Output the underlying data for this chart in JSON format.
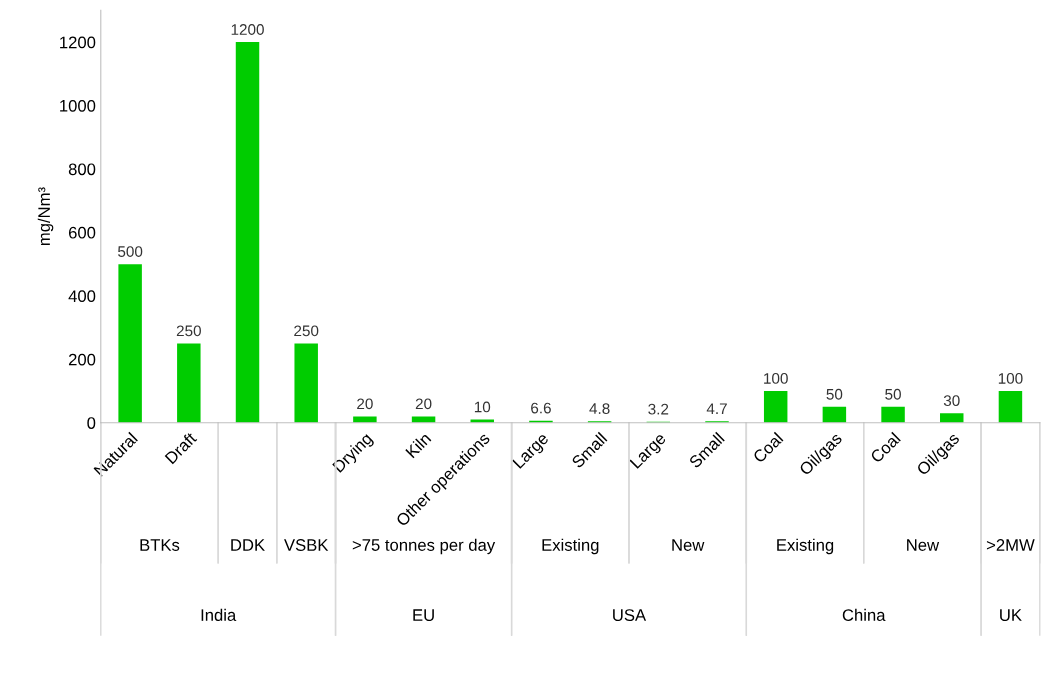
{
  "chart_data": {
    "type": "bar",
    "ylabel": "mg/Nm³",
    "categories": [
      "Natural",
      "Draft",
      null,
      null,
      "Drying",
      "Kiln",
      "Other operations",
      "Large",
      "Small",
      "Large",
      "Small",
      "Coal",
      "Oil/gas",
      "Coal",
      "Oil/gas",
      null
    ],
    "values": [
      500,
      250,
      1200,
      250,
      20,
      20,
      10,
      6.6,
      4.8,
      3.2,
      4.7,
      100,
      50,
      50,
      30,
      100
    ],
    "color": "#00cc00",
    "data_labels": true,
    "grid": false,
    "legend": false,
    "ylim": [
      0,
      1300
    ],
    "yticks": [
      0,
      200,
      400,
      600,
      800,
      1000,
      1200
    ],
    "annotations": [
      "BTKs",
      "DDK",
      "VSBK",
      ">75 tonnes per day",
      "Existing",
      "New",
      "Existing",
      "New",
      ">2MW",
      "India",
      "EU",
      "USA",
      "China",
      "UK"
    ]
  }
}
